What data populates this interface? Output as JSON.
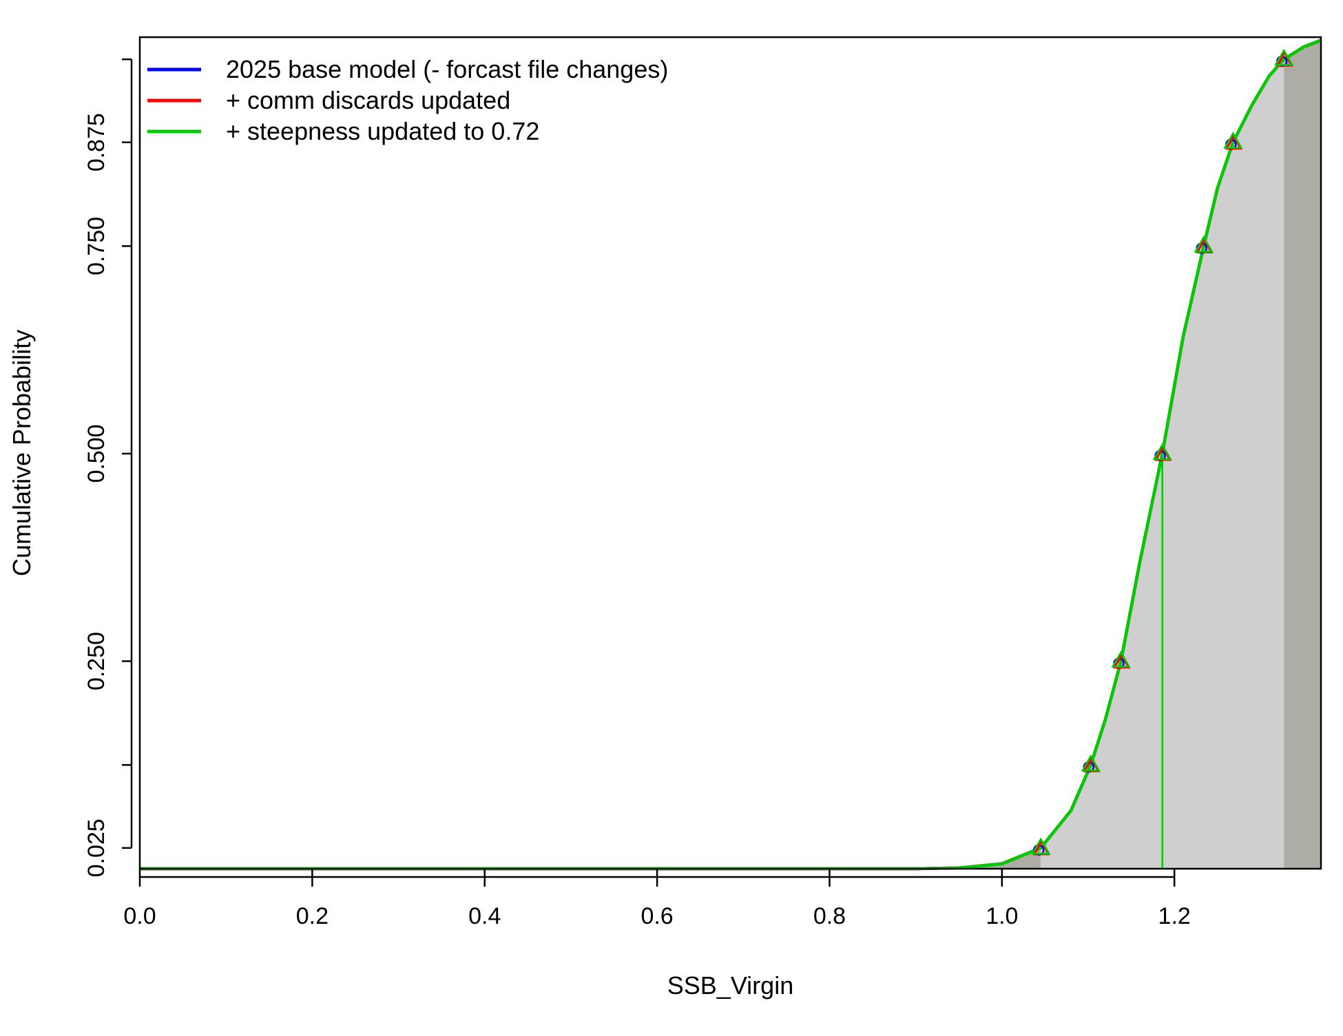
{
  "chart_data": {
    "type": "line",
    "title": "",
    "xlabel": "SSB_Virgin",
    "ylabel": "Cumulative Probability",
    "xlim": [
      0,
      1.37
    ],
    "ylim": [
      0,
      1
    ],
    "x_ticks": [
      "0.0",
      "0.2",
      "0.4",
      "0.6",
      "0.8",
      "1.0",
      "1.2"
    ],
    "x_tick_values": [
      0,
      0.2,
      0.4,
      0.6,
      0.8,
      1.0,
      1.2
    ],
    "y_ticks": [
      "0.025",
      "0.250",
      "0.500",
      "0.750",
      "0.875"
    ],
    "y_tick_values": [
      0.025,
      0.25,
      0.5,
      0.75,
      0.875
    ],
    "y_minor_ticks": [
      0.125,
      0.975
    ],
    "grid": false,
    "legend_position": "top-left",
    "shading": {
      "outer_interval": [
        1.045,
        1.327
      ],
      "median": 1.186,
      "inner_color": "#d0cfcf",
      "outer_color": "#adada5"
    },
    "series": [
      {
        "name": "2025 base model (- forcast file changes)",
        "color": "#0000ff",
        "marker": "circle",
        "x": [
          0,
          0.9,
          0.95,
          1.0,
          1.045,
          1.08,
          1.103,
          1.12,
          1.138,
          1.16,
          1.186,
          1.21,
          1.234,
          1.25,
          1.268,
          1.29,
          1.31,
          1.327,
          1.35,
          1.37
        ],
        "y": [
          0,
          0.0,
          0.001,
          0.006,
          0.025,
          0.07,
          0.125,
          0.18,
          0.25,
          0.37,
          0.5,
          0.64,
          0.75,
          0.82,
          0.875,
          0.92,
          0.955,
          0.975,
          0.99,
          0.998
        ]
      },
      {
        "name": "+ comm discards updated",
        "color": "#ff0000",
        "marker": "triangle",
        "x": [
          0,
          0.9,
          0.95,
          1.0,
          1.045,
          1.08,
          1.103,
          1.12,
          1.138,
          1.16,
          1.186,
          1.21,
          1.234,
          1.25,
          1.268,
          1.29,
          1.31,
          1.327,
          1.35,
          1.37
        ],
        "y": [
          0,
          0.0,
          0.001,
          0.006,
          0.025,
          0.07,
          0.125,
          0.18,
          0.25,
          0.37,
          0.5,
          0.64,
          0.75,
          0.82,
          0.875,
          0.92,
          0.955,
          0.975,
          0.99,
          0.998
        ]
      },
      {
        "name": "+ steepness updated to 0.72",
        "color": "#00cc00",
        "marker": "triangle-open",
        "x": [
          0,
          0.9,
          0.95,
          1.0,
          1.045,
          1.08,
          1.103,
          1.12,
          1.138,
          1.16,
          1.186,
          1.21,
          1.234,
          1.25,
          1.268,
          1.29,
          1.31,
          1.327,
          1.35,
          1.37
        ],
        "y": [
          0,
          0.0,
          0.001,
          0.006,
          0.025,
          0.07,
          0.125,
          0.18,
          0.25,
          0.37,
          0.5,
          0.64,
          0.75,
          0.82,
          0.875,
          0.92,
          0.955,
          0.975,
          0.99,
          0.998
        ]
      }
    ],
    "quantile_points": {
      "x": [
        1.045,
        1.103,
        1.138,
        1.186,
        1.234,
        1.268,
        1.327
      ],
      "y": [
        0.025,
        0.125,
        0.25,
        0.5,
        0.75,
        0.875,
        0.975
      ]
    }
  }
}
